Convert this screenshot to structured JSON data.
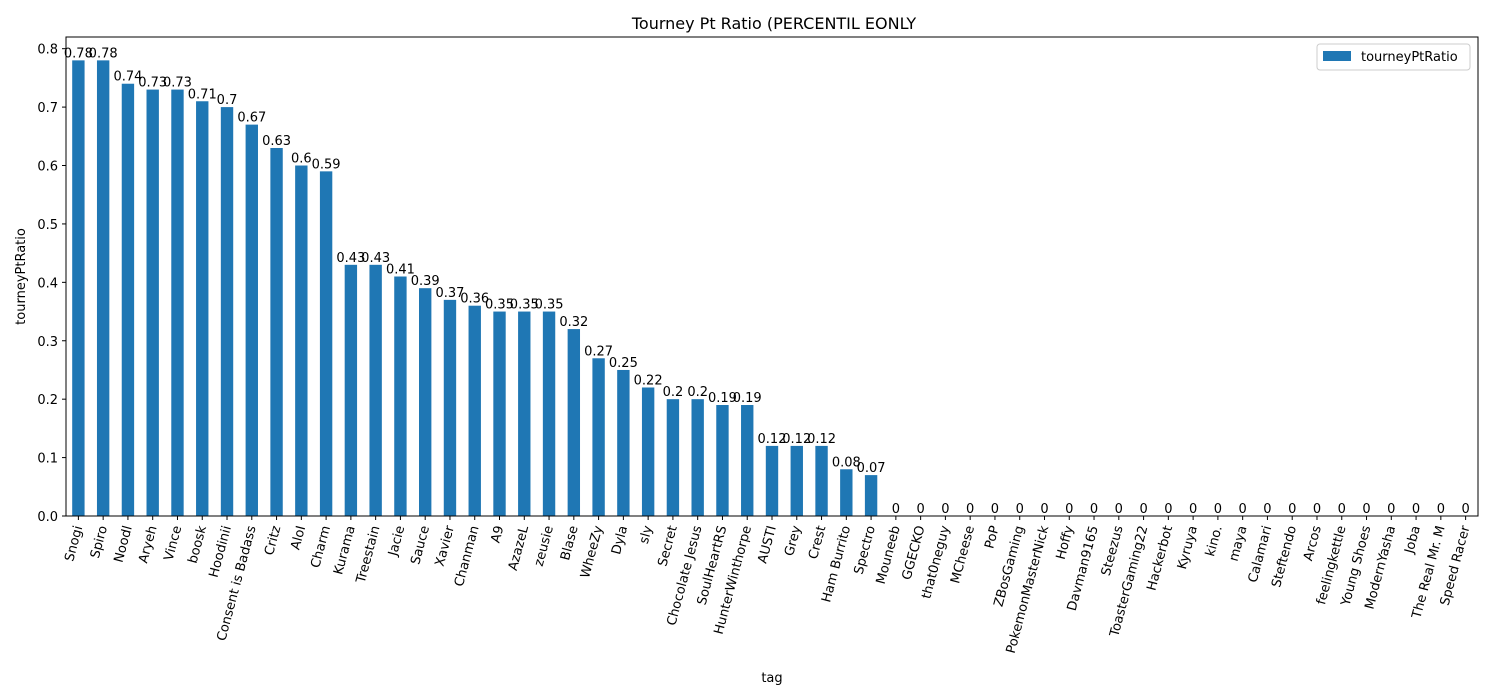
{
  "chart_data": {
    "type": "bar",
    "title": "Tourney Pt Ratio (PERCENTIL EONLY",
    "xlabel": "tag",
    "ylabel": "tourneyPtRatio",
    "ylim": [
      0,
      0.82
    ],
    "yticks": [
      "0.0",
      "0.1",
      "0.2",
      "0.3",
      "0.4",
      "0.5",
      "0.6",
      "0.7",
      "0.8"
    ],
    "grid": false,
    "legend": {
      "position": "top-right",
      "entries": [
        "tourneyPtRatio"
      ]
    },
    "bar_color": "#1f77b4",
    "categories": [
      "Snogi",
      "Spiro",
      "Noodl",
      "Aryeh",
      "Vince",
      "boosk",
      "Hoodinii",
      "Consent is Badass",
      "Critz",
      "AloI",
      "Charm",
      "Kurama",
      "Treestain",
      "Jacie",
      "Sauce",
      "Xavier",
      "Chanman",
      "A9",
      "AzazeL",
      "zeusie",
      "Blase",
      "WheeZy",
      "Dyla",
      "sly",
      "Secret",
      "Chocolate Jesus",
      "SoulHeartRS",
      "HunterWinthorpe",
      "AUSTI",
      "Grey",
      "Crest",
      "Ham Burrito",
      "Spectro",
      "Mouneeb",
      "GGECKO",
      "that0neguy",
      "MCheese",
      "PoP",
      "ZBosGaming",
      "PokemonMasterNick",
      "Hoffy",
      "Davman9165",
      "Steezus",
      "ToasterGaming22",
      "Hackerbot",
      "Kyruya",
      "kino.",
      "maya",
      "Calamari",
      "Steftendo",
      "Arcos",
      "feelingkettle",
      "Young Shoes",
      "ModernYasha",
      "Joba",
      "The Real Mr. M",
      "Speed Racer"
    ],
    "series": [
      {
        "name": "tourneyPtRatio",
        "values": [
          0.78,
          0.78,
          0.74,
          0.73,
          0.73,
          0.71,
          0.7,
          0.67,
          0.63,
          0.6,
          0.59,
          0.43,
          0.43,
          0.41,
          0.39,
          0.37,
          0.36,
          0.35,
          0.35,
          0.35,
          0.32,
          0.27,
          0.25,
          0.22,
          0.2,
          0.2,
          0.19,
          0.19,
          0.12,
          0.12,
          0.12,
          0.08,
          0.07,
          0,
          0,
          0,
          0,
          0,
          0,
          0,
          0,
          0,
          0,
          0,
          0,
          0,
          0,
          0,
          0,
          0,
          0,
          0,
          0,
          0,
          0,
          0,
          0
        ],
        "labels": [
          "0.78",
          "0.78",
          "0.74",
          "0.73",
          "0.73",
          "0.71",
          "0.7",
          "0.67",
          "0.63",
          "0.6",
          "0.59",
          "0.43",
          "0.43",
          "0.41",
          "0.39",
          "0.37",
          "0.36",
          "0.35",
          "0.35",
          "0.35",
          "0.32",
          "0.27",
          "0.25",
          "0.22",
          "0.2",
          "0.2",
          "0.19",
          "0.19",
          "0.12",
          "0.12",
          "0.12",
          "0.08",
          "0.07",
          "0",
          "0",
          "0",
          "0",
          "0",
          "0",
          "0",
          "0",
          "0",
          "0",
          "0",
          "0",
          "0",
          "0",
          "0",
          "0",
          "0",
          "0",
          "0",
          "0",
          "0",
          "0",
          "0",
          "0"
        ]
      }
    ]
  }
}
